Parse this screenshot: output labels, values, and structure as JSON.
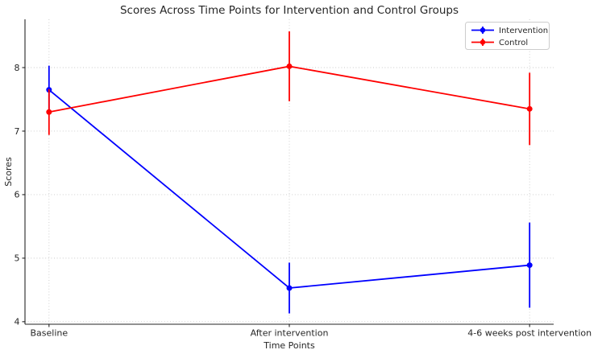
{
  "chart_data": {
    "type": "line",
    "title": "Scores Across Time Points for Intervention and Control Groups",
    "xlabel": "Time Points",
    "ylabel": "Scores",
    "categories": [
      "Baseline",
      "After intervention",
      "4-6 weeks post intervention"
    ],
    "series": [
      {
        "name": "Intervention",
        "color": "#0000ff",
        "values": [
          7.65,
          4.53,
          4.89
        ],
        "errors": [
          0.38,
          0.4,
          0.67
        ]
      },
      {
        "name": "Control",
        "color": "#ff0000",
        "values": [
          7.3,
          8.02,
          7.35
        ],
        "errors": [
          0.36,
          0.55,
          0.57
        ]
      }
    ],
    "yticks": [
      4,
      5,
      6,
      7,
      8
    ],
    "ylim": [
      3.96,
      8.76
    ],
    "grid": true,
    "grid_style": "dotted",
    "legend_position": "upper-right",
    "legend_entries": [
      "Intervention",
      "Control"
    ],
    "marker": "circle",
    "error_bar_caps": false,
    "axis_color": "#262626",
    "grid_color": "#c9c9c9",
    "background_color": "#ffffff"
  }
}
